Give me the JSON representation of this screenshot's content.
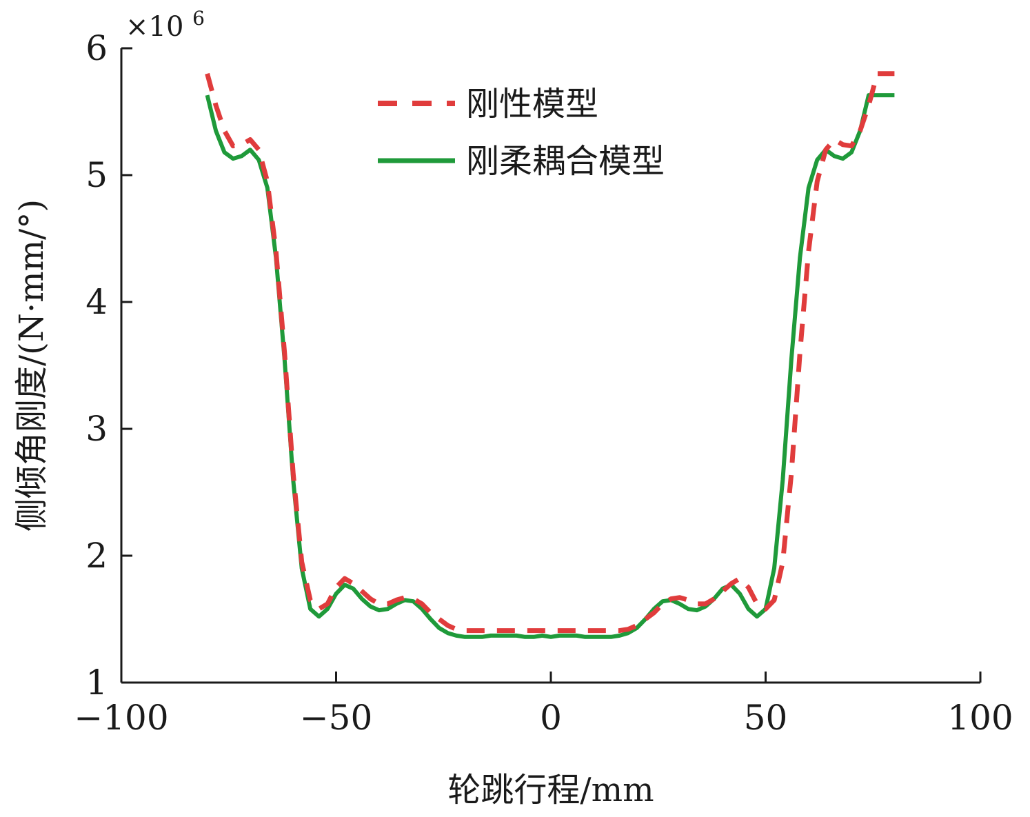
{
  "chart_data": {
    "type": "line",
    "xlabel": "轮跳行程/mm",
    "ylabel": "侧倾角刚度/(N·mm/°)",
    "y_multiplier": "×10",
    "y_multiplier_exponent": "6",
    "xlim": [
      -100,
      100
    ],
    "ylim": [
      1,
      6
    ],
    "x_ticks": [
      -100,
      -50,
      0,
      50,
      100
    ],
    "x_tick_labels": [
      "−100",
      "−50",
      "0",
      "50",
      "100"
    ],
    "y_ticks": [
      1,
      2,
      3,
      4,
      5,
      6
    ],
    "y_tick_labels": [
      "1",
      "2",
      "3",
      "4",
      "5",
      "6"
    ],
    "grid": false,
    "legend_position": "top-center",
    "x": [
      -80,
      -78,
      -76,
      -74,
      -72,
      -70,
      -68,
      -66,
      -64,
      -62,
      -60,
      -58,
      -56,
      -54,
      -52,
      -50,
      -48,
      -46,
      -44,
      -42,
      -40,
      -38,
      -36,
      -34,
      -32,
      -30,
      -28,
      -26,
      -24,
      -22,
      -20,
      -18,
      -16,
      -14,
      -12,
      -10,
      -8,
      -6,
      -4,
      -2,
      0,
      2,
      4,
      6,
      8,
      10,
      12,
      14,
      16,
      18,
      20,
      22,
      24,
      26,
      28,
      30,
      32,
      34,
      36,
      38,
      40,
      42,
      44,
      46,
      48,
      50,
      52,
      54,
      56,
      58,
      60,
      62,
      64,
      66,
      68,
      70,
      72,
      74,
      76,
      78,
      80
    ],
    "series": [
      {
        "name": "刚性模型",
        "color": "#e03c3c",
        "style": "dashed",
        "values": [
          5.8,
          5.55,
          5.35,
          5.23,
          5.24,
          5.28,
          5.2,
          4.95,
          4.4,
          3.6,
          2.65,
          1.95,
          1.65,
          1.58,
          1.62,
          1.75,
          1.82,
          1.78,
          1.72,
          1.66,
          1.62,
          1.62,
          1.65,
          1.67,
          1.66,
          1.62,
          1.55,
          1.5,
          1.45,
          1.42,
          1.41,
          1.41,
          1.41,
          1.41,
          1.41,
          1.41,
          1.41,
          1.41,
          1.41,
          1.41,
          1.41,
          1.41,
          1.41,
          1.41,
          1.41,
          1.41,
          1.41,
          1.41,
          1.41,
          1.42,
          1.45,
          1.5,
          1.55,
          1.62,
          1.66,
          1.67,
          1.65,
          1.62,
          1.62,
          1.66,
          1.72,
          1.78,
          1.82,
          1.75,
          1.62,
          1.58,
          1.65,
          1.95,
          2.65,
          3.6,
          4.4,
          4.95,
          5.2,
          5.28,
          5.24,
          5.23,
          5.35,
          5.55,
          5.8,
          5.8,
          5.8
        ]
      },
      {
        "name": "刚柔耦合模型",
        "color": "#1f9a3a",
        "style": "solid",
        "values": [
          5.63,
          5.35,
          5.18,
          5.13,
          5.15,
          5.2,
          5.12,
          4.9,
          4.35,
          3.55,
          2.6,
          1.9,
          1.58,
          1.52,
          1.58,
          1.7,
          1.77,
          1.74,
          1.66,
          1.6,
          1.57,
          1.58,
          1.62,
          1.65,
          1.64,
          1.58,
          1.5,
          1.43,
          1.39,
          1.37,
          1.36,
          1.36,
          1.36,
          1.37,
          1.37,
          1.37,
          1.37,
          1.36,
          1.36,
          1.37,
          1.36,
          1.37,
          1.37,
          1.37,
          1.36,
          1.36,
          1.36,
          1.36,
          1.37,
          1.39,
          1.43,
          1.5,
          1.58,
          1.64,
          1.65,
          1.62,
          1.58,
          1.57,
          1.6,
          1.66,
          1.74,
          1.77,
          1.7,
          1.58,
          1.52,
          1.58,
          1.9,
          2.6,
          3.55,
          4.35,
          4.9,
          5.12,
          5.2,
          5.15,
          5.13,
          5.18,
          5.35,
          5.63,
          5.63,
          5.63,
          5.63
        ]
      }
    ]
  }
}
